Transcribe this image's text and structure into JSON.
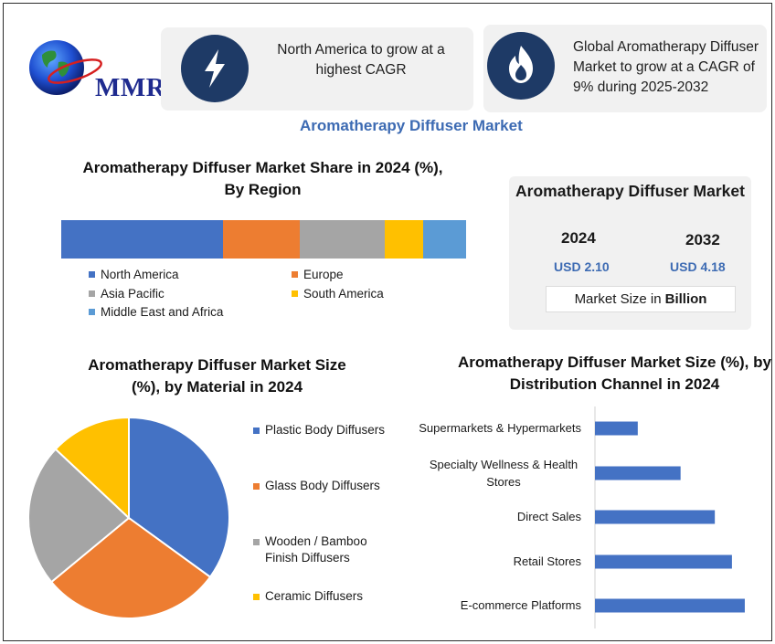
{
  "logo": {
    "text": "MMR"
  },
  "cards": [
    {
      "icon": "lightning-bolt-icon",
      "text": "North America to grow at a highest CAGR"
    },
    {
      "icon": "flame-icon",
      "text": "Global Aromatherapy Diffuser Market to grow at a CAGR of 9% during 2025-2032"
    }
  ],
  "main_title": "Aromatherapy Diffuser Market",
  "market_box": {
    "title": "Aromatherapy Diffuser Market",
    "year_1": "2024",
    "year_2": "2032",
    "value_1": "USD 2.10",
    "value_2": "USD 4.18",
    "unit_prefix": "Market Size in",
    "unit_bold": "Billion"
  },
  "colors": {
    "blue": "#4472c4",
    "orange": "#ed7d31",
    "gray": "#a5a5a5",
    "yellow": "#ffc000",
    "light_blue": "#5b9bd5",
    "card_icon_bg": "#1e3a66",
    "title_blue": "#3d6bb3"
  },
  "chart_data": [
    {
      "type": "bar",
      "subtype": "stacked-100",
      "title": "Aromatherapy Diffuser Market Share in 2024 (%), By Region",
      "categories": [
        "North America",
        "Europe",
        "Asia Pacific",
        "South America",
        "Middle East and Africa"
      ],
      "values": [
        40,
        19,
        21,
        9.5,
        10.5
      ],
      "colors": [
        "#4472c4",
        "#ed7d31",
        "#a5a5a5",
        "#ffc000",
        "#5b9bd5"
      ],
      "legend_position": "bottom"
    },
    {
      "type": "pie",
      "title": "Aromatherapy Diffuser Market Size (%), by  Material in 2024",
      "categories": [
        "Plastic Body Diffusers",
        "Glass Body Diffusers",
        "Wooden / Bamboo Finish Diffusers",
        "Ceramic Diffusers"
      ],
      "values": [
        35,
        29,
        23,
        13
      ],
      "colors": [
        "#4472c4",
        "#ed7d31",
        "#a5a5a5",
        "#ffc000"
      ],
      "legend_position": "right"
    },
    {
      "type": "bar",
      "orientation": "horizontal",
      "title": "Aromatherapy Diffuser Market Size (%), by Distribution Channel in 2024",
      "categories": [
        "Supermarkets & Hypermarkets",
        "Specialty Wellness & Health Stores",
        "Direct Sales",
        "Retail Stores",
        "E-commerce Platforms"
      ],
      "values": [
        10,
        20,
        28,
        32,
        35
      ],
      "xlim": [
        0,
        38
      ],
      "color": "#4472c4",
      "grid": false
    }
  ]
}
